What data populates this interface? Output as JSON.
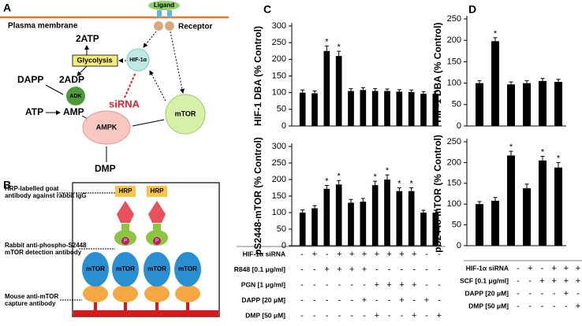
{
  "panels": {
    "a": "A",
    "b": "B",
    "c": "C",
    "d": "D"
  },
  "pathway": {
    "ligand": "Ligand",
    "membrane": "Plasma membrane",
    "receptor": "Receptor",
    "atp2": "2ATP",
    "glycolysis": "Glycolysis",
    "hif": "HIF-1α",
    "dapp": "DAPP",
    "adp2": "2ADP",
    "adk": "ADK",
    "atp": "ATP",
    "amp": "AMP",
    "sirna": "siRNA",
    "ampk": "AMPK",
    "mtor": "mTOR",
    "dmp": "DMP"
  },
  "elisa": {
    "hrp_label": [
      "HRP-labelled goat",
      "antibody against rabbit IgG"
    ],
    "detection_label": [
      "Rabbit anti-phospho-S2448",
      "mTOR detection antibody"
    ],
    "capture_label": [
      "Mouse anti-mTOR",
      "capture antibody"
    ],
    "hrp": [
      "HRP",
      "HRP"
    ],
    "p": [
      "P",
      "P"
    ],
    "mtor": [
      "mTOR",
      "mTOR",
      "mTOR",
      "mTOR"
    ]
  },
  "chart_data": [
    {
      "type": "bar",
      "ylabel": "HIF-1 DBA (% Control)",
      "color": "#000000",
      "marker": "*",
      "values": [
        100,
        98,
        225,
        210,
        105,
        108,
        105,
        105,
        103,
        102,
        97,
        97
      ],
      "errors": [
        8,
        7,
        15,
        14,
        7,
        7,
        7,
        6,
        6,
        6,
        6,
        6
      ],
      "significant": [
        false,
        false,
        true,
        true,
        false,
        false,
        false,
        false,
        false,
        false,
        false,
        false
      ],
      "ylim": [
        0,
        300
      ],
      "yticks": [
        0,
        50,
        100,
        150,
        200,
        250,
        300
      ]
    },
    {
      "type": "bar",
      "ylabel": "pS2448-mTOR (% Control)",
      "color": "#000000",
      "marker": "*",
      "values": [
        100,
        113,
        172,
        185,
        130,
        133,
        183,
        200,
        165,
        165,
        100,
        100
      ],
      "errors": [
        8,
        8,
        10,
        12,
        10,
        10,
        12,
        14,
        10,
        10,
        7,
        7
      ],
      "significant": [
        false,
        false,
        true,
        true,
        false,
        false,
        true,
        true,
        true,
        true,
        false,
        false
      ],
      "ylim": [
        0,
        300
      ],
      "yticks": [
        0,
        50,
        100,
        150,
        200,
        250,
        300
      ]
    },
    {
      "type": "bar",
      "ylabel": "HIF-1 DBA (% Control)",
      "color": "#000000",
      "marker": "*",
      "values": [
        100,
        198,
        97,
        100,
        105,
        103
      ],
      "errors": [
        6,
        8,
        6,
        6,
        6,
        6
      ],
      "significant": [
        false,
        true,
        false,
        false,
        false,
        false
      ],
      "ylim": [
        0,
        250
      ],
      "yticks": [
        0,
        50,
        100,
        150,
        200,
        250
      ]
    },
    {
      "type": "bar",
      "ylabel": "pS2448-mTOR (% Control)",
      "color": "#000000",
      "marker": "*",
      "values": [
        100,
        108,
        217,
        138,
        205,
        188
      ],
      "errors": [
        6,
        8,
        10,
        10,
        10,
        12
      ],
      "significant": [
        false,
        false,
        true,
        false,
        true,
        true
      ],
      "ylim": [
        0,
        250
      ],
      "yticks": [
        0,
        50,
        100,
        150,
        200,
        250
      ]
    }
  ],
  "conditions": {
    "c": [
      {
        "label": "HIF-1α siRNA",
        "signs": [
          "-",
          "+",
          "-",
          "+",
          "+",
          "+",
          "+",
          "+",
          "+",
          "+",
          "-",
          "-"
        ]
      },
      {
        "label": "R848 [0.1 μg/ml]",
        "signs": [
          "-",
          "-",
          "+",
          "+",
          "+",
          "+",
          "-",
          "-",
          "-",
          "-",
          "-",
          "-"
        ]
      },
      {
        "label": "PGN [1 μg/ml]",
        "signs": [
          "-",
          "-",
          "-",
          "-",
          "-",
          "-",
          "+",
          "+",
          "+",
          "+",
          "-",
          "-"
        ]
      },
      {
        "label": "DAPP [20 μM]",
        "signs": [
          "-",
          "-",
          "-",
          "-",
          "-",
          "+",
          "-",
          "-",
          "+",
          "-",
          "+",
          "-"
        ]
      },
      {
        "label": "DMP [50 μM]",
        "signs": [
          "-",
          "-",
          "-",
          "-",
          "-",
          "-",
          "+",
          "-",
          "-",
          "+",
          "-",
          "+"
        ]
      }
    ],
    "d": [
      {
        "label": "HIF-1α siRNA",
        "signs": [
          "-",
          "+",
          "-",
          "+",
          "+",
          "+"
        ]
      },
      {
        "label": "SCF [0.1 μg/ml]",
        "signs": [
          "-",
          "-",
          "+",
          "+",
          "+",
          "+"
        ]
      },
      {
        "label": "DAPP [20 μM]",
        "signs": [
          "-",
          "-",
          "-",
          "-",
          "+",
          "-"
        ]
      },
      {
        "label": "DMP [50 μM]",
        "signs": [
          "-",
          "-",
          "-",
          "-",
          "-",
          "+"
        ]
      }
    ]
  }
}
